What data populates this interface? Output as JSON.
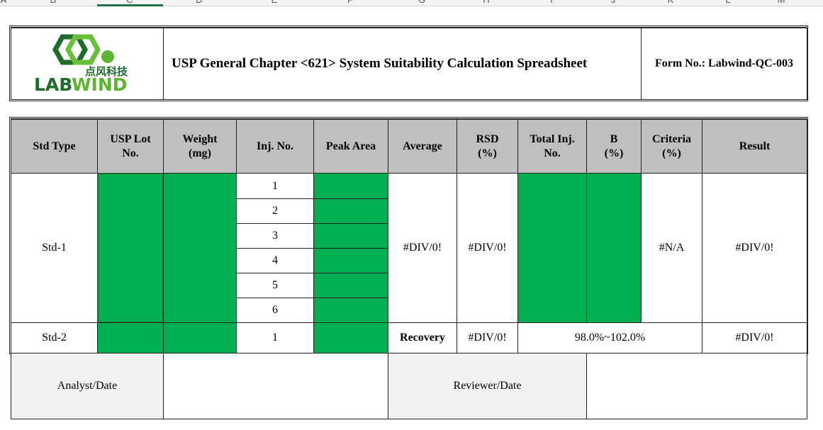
{
  "spreadsheet": {
    "column_headers": [
      "A",
      "B",
      "C",
      "D",
      "E",
      "F",
      "G",
      "H",
      "I",
      "J",
      "K",
      "L",
      "M"
    ]
  },
  "header": {
    "logo": {
      "chinese": "点风科技",
      "brand_lab": "LAB",
      "brand_wind": "WIND"
    },
    "title": "USP General Chapter <621> System Suitability Calculation Spreadsheet",
    "form_no": "Form No.: Labwind-QC-003"
  },
  "table": {
    "columns": [
      "Std Type",
      "USP Lot No.",
      "Weight (mg)",
      "Inj. No.",
      "Peak Area",
      "Average",
      "RSD (%)",
      "Total Inj. No.",
      "B (%)",
      "Criteria (%)",
      "Result"
    ],
    "std1": {
      "type": "Std-1",
      "injections": [
        1,
        2,
        3,
        4,
        5,
        6
      ],
      "average": "#DIV/0!",
      "rsd": "#DIV/0!",
      "criteria": "#N/A",
      "result": "#DIV/0!"
    },
    "std2": {
      "type": "Std-2",
      "injection": 1,
      "recovery_label": "Recovery",
      "rsd": "#DIV/0!",
      "range": "98.0%~102.0%",
      "result": "#DIV/0!"
    }
  },
  "signatures": {
    "analyst": "Analyst/Date",
    "reviewer": "Reviewer/Date"
  }
}
